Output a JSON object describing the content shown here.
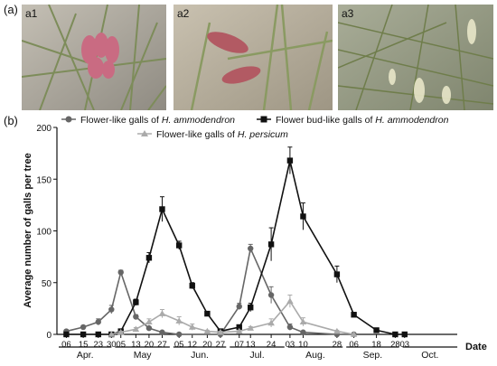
{
  "figure": {
    "panel_a_label": "(a)",
    "panel_b_label": "(b)",
    "photos": [
      {
        "tag": "a1",
        "colors": {
          "bg": "#a8a49a",
          "accent": "#c96b82"
        }
      },
      {
        "tag": "a2",
        "colors": {
          "bg": "#b4ac9c",
          "accent": "#b25a63"
        }
      },
      {
        "tag": "a3",
        "colors": {
          "bg": "#9aa089",
          "accent": "#e8e6c8"
        }
      }
    ]
  },
  "chart_data": {
    "type": "line",
    "title": "",
    "xlabel": "Date",
    "ylabel": "Average number of galls per tree",
    "ylim": [
      0,
      200
    ],
    "yticks": [
      0,
      50,
      100,
      150,
      200
    ],
    "date_ticks": [
      {
        "label": "06",
        "day": 96
      },
      {
        "label": "15",
        "day": 105
      },
      {
        "label": "23",
        "day": 113
      },
      {
        "label": "30",
        "day": 120
      },
      {
        "label": "05",
        "day": 125
      },
      {
        "label": "13",
        "day": 133
      },
      {
        "label": "20",
        "day": 140
      },
      {
        "label": "27",
        "day": 147
      },
      {
        "label": "05",
        "day": 156
      },
      {
        "label": "12",
        "day": 163
      },
      {
        "label": "20",
        "day": 171
      },
      {
        "label": "27",
        "day": 178
      },
      {
        "label": "07",
        "day": 188
      },
      {
        "label": "13",
        "day": 194
      },
      {
        "label": "24",
        "day": 205
      },
      {
        "label": "03",
        "day": 215
      },
      {
        "label": "10",
        "day": 222
      },
      {
        "label": "28",
        "day": 240
      },
      {
        "label": "06",
        "day": 249
      },
      {
        "label": "18",
        "day": 261
      },
      {
        "label": "28",
        "day": 271
      },
      {
        "label": "03",
        "day": 276
      }
    ],
    "x_range_days": [
      91,
      304
    ],
    "months": [
      {
        "label": "Apr.",
        "start": 91,
        "end": 120
      },
      {
        "label": "May",
        "start": 121,
        "end": 151
      },
      {
        "label": "Jun.",
        "start": 152,
        "end": 181
      },
      {
        "label": "Jul.",
        "start": 182,
        "end": 212
      },
      {
        "label": "Aug.",
        "start": 213,
        "end": 243
      },
      {
        "label": "Sep.",
        "start": 244,
        "end": 273
      },
      {
        "label": "Oct.",
        "start": 274,
        "end": 304
      }
    ],
    "series": [
      {
        "name": "Flower-like galls of H. ammodendron",
        "legend_prefix": "Flower-like galls of ",
        "legend_species": "H. ammodendron",
        "color": "#666666",
        "marker": "circle",
        "points": [
          {
            "x": 96,
            "y": 3,
            "err": 1
          },
          {
            "x": 105,
            "y": 7,
            "err": 1.5
          },
          {
            "x": 113,
            "y": 12,
            "err": 3
          },
          {
            "x": 120,
            "y": 24,
            "err": 4
          },
          {
            "x": 125,
            "y": 60,
            "err": 2
          },
          {
            "x": 133,
            "y": 17,
            "err": 2
          },
          {
            "x": 140,
            "y": 6,
            "err": 1.5
          },
          {
            "x": 147,
            "y": 2,
            "err": 1
          },
          {
            "x": 156,
            "y": 0,
            "err": 0
          },
          {
            "x": 178,
            "y": 0,
            "err": 0
          },
          {
            "x": 188,
            "y": 27,
            "err": 3
          },
          {
            "x": 194,
            "y": 83,
            "err": 4
          },
          {
            "x": 205,
            "y": 38,
            "err": 8
          },
          {
            "x": 215,
            "y": 7,
            "err": 3
          },
          {
            "x": 222,
            "y": 2,
            "err": 1
          },
          {
            "x": 240,
            "y": 0,
            "err": 0
          },
          {
            "x": 249,
            "y": 0,
            "err": 0
          }
        ]
      },
      {
        "name": "Flower bud-like galls of H. ammodendron",
        "legend_prefix": "Flower bud-like galls of ",
        "legend_species": "H. ammodendron",
        "color": "#111111",
        "marker": "square",
        "points": [
          {
            "x": 96,
            "y": 0,
            "err": 0
          },
          {
            "x": 105,
            "y": 0,
            "err": 0
          },
          {
            "x": 113,
            "y": 0,
            "err": 0
          },
          {
            "x": 120,
            "y": 0,
            "err": 0
          },
          {
            "x": 125,
            "y": 3,
            "err": 1
          },
          {
            "x": 133,
            "y": 31,
            "err": 3
          },
          {
            "x": 140,
            "y": 74,
            "err": 5
          },
          {
            "x": 147,
            "y": 121,
            "err": 12
          },
          {
            "x": 156,
            "y": 86,
            "err": 4
          },
          {
            "x": 163,
            "y": 47,
            "err": 3
          },
          {
            "x": 171,
            "y": 20,
            "err": 2
          },
          {
            "x": 178,
            "y": 3,
            "err": 1
          },
          {
            "x": 188,
            "y": 7,
            "err": 2
          },
          {
            "x": 194,
            "y": 26,
            "err": 4
          },
          {
            "x": 205,
            "y": 87,
            "err": 16
          },
          {
            "x": 215,
            "y": 168,
            "err": 13
          },
          {
            "x": 222,
            "y": 114,
            "err": 13
          },
          {
            "x": 240,
            "y": 58,
            "err": 8
          },
          {
            "x": 249,
            "y": 19,
            "err": 2
          },
          {
            "x": 261,
            "y": 4,
            "err": 1
          },
          {
            "x": 271,
            "y": 0,
            "err": 0
          },
          {
            "x": 276,
            "y": 0,
            "err": 0
          }
        ]
      },
      {
        "name": "Flower-like galls of H. persicum",
        "legend_prefix": "Flower-like galls of ",
        "legend_species": "H. persicum",
        "color": "#aaaaaa",
        "marker": "triangle",
        "points": [
          {
            "x": 120,
            "y": 0,
            "err": 0
          },
          {
            "x": 125,
            "y": 2,
            "err": 1
          },
          {
            "x": 133,
            "y": 5,
            "err": 1.5
          },
          {
            "x": 140,
            "y": 12,
            "err": 3
          },
          {
            "x": 147,
            "y": 20,
            "err": 4
          },
          {
            "x": 156,
            "y": 13,
            "err": 4
          },
          {
            "x": 163,
            "y": 7,
            "err": 3
          },
          {
            "x": 171,
            "y": 3,
            "err": 1
          },
          {
            "x": 178,
            "y": 2,
            "err": 1
          },
          {
            "x": 188,
            "y": 3,
            "err": 1
          },
          {
            "x": 194,
            "y": 6,
            "err": 1.5
          },
          {
            "x": 205,
            "y": 11,
            "err": 4
          },
          {
            "x": 215,
            "y": 32,
            "err": 6
          },
          {
            "x": 222,
            "y": 12,
            "err": 4
          },
          {
            "x": 240,
            "y": 3,
            "err": 1
          },
          {
            "x": 249,
            "y": 0,
            "err": 0
          }
        ]
      }
    ]
  }
}
